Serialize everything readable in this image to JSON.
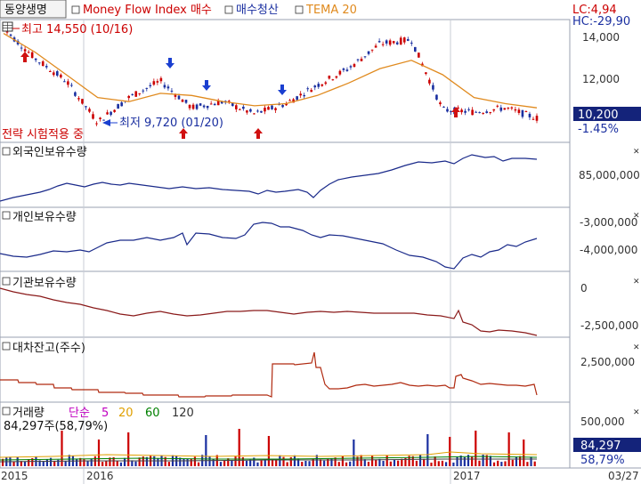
{
  "header": {
    "stock": "동양생명",
    "indicator": "Money Flow Index 매수",
    "buy_liquidation": "매수청산",
    "tema": "TEMA 20",
    "lc": "LC:4,94",
    "hc": "HC:-29,90"
  },
  "price_panel": {
    "high_label": "최고 14,550 (10/16)",
    "low_label": "최저 9,720 (01/20)",
    "strategy": "전략 시험적용 중",
    "last_price": "10,200",
    "change": "-1.45%",
    "yticks": [
      "14,000",
      "12,000"
    ]
  },
  "foreign": {
    "title": "외국인보유수량",
    "ytick": "85,000,000"
  },
  "individual": {
    "title": "개인보유수량",
    "yticks": [
      "-3,000,000",
      "-4,000,000"
    ]
  },
  "institution": {
    "title": "기관보유수량",
    "yticks": [
      "0",
      "-2,500,000"
    ]
  },
  "loan": {
    "title": "대차잔고(주수)",
    "ytick": "2,500,000"
  },
  "volume": {
    "title": "거래량",
    "ma_label": "단순",
    "ma": [
      "5",
      "20",
      "60",
      "120"
    ],
    "ma_colors": [
      "#c000c0",
      "#e0a000",
      "#008000",
      "#333333"
    ],
    "subtitle": "84,297주(58,79%)",
    "ytick": "500,000",
    "last": "84,297",
    "pct": "58,79%"
  },
  "xaxis": {
    "labels": [
      "2015",
      "2016",
      "2017"
    ],
    "date": "03/27"
  },
  "chart_data": {
    "type": "line",
    "colors": {
      "price_up": "#cc0000",
      "price_down": "#1a2fa0",
      "tema": "#e08a1e",
      "foreign": "#1a2a8a",
      "individual": "#1a2a8a",
      "institution": "#8a1a1a",
      "loan": "#b02a10"
    },
    "price": {
      "x": [
        "2015-10",
        "2015-11",
        "2015-12",
        "2016-01",
        "2016-02",
        "2016-03",
        "2016-04",
        "2016-05",
        "2016-06",
        "2016-07",
        "2016-08",
        "2016-09",
        "2016-10",
        "2016-11",
        "2016-12",
        "2017-01",
        "2017-02",
        "2017-03"
      ],
      "values": [
        14550,
        13100,
        12000,
        10000,
        11200,
        12000,
        10700,
        11000,
        10400,
        10900,
        11800,
        12600,
        13800,
        14000,
        10600,
        10500,
        10700,
        10200
      ],
      "ylim": [
        9200,
        14800
      ]
    },
    "tema20": {
      "values": [
        14300,
        13400,
        12300,
        11200,
        11000,
        11400,
        11300,
        11000,
        10800,
        10900,
        11300,
        11900,
        12600,
        13000,
        12300,
        11200,
        10900,
        10700
      ]
    },
    "high": {
      "value": 14550,
      "date": "10/16"
    },
    "low": {
      "value": 9720,
      "date": "01/20"
    }
  }
}
